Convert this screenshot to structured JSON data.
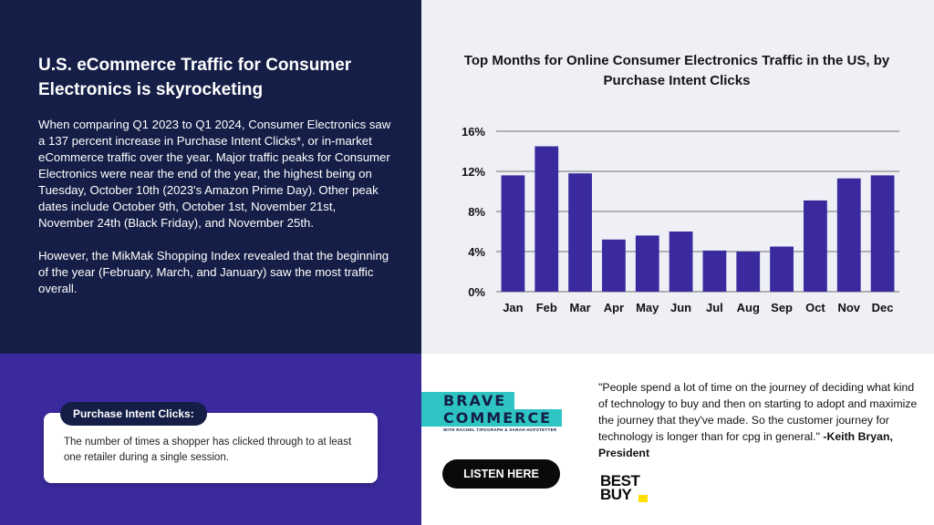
{
  "left": {
    "headline": "U.S. eCommerce Traffic for Consumer Electronics is skyrocketing",
    "paragraph1": "When comparing Q1 2023 to Q1 2024, Consumer Electronics saw a 137 percent increase in Purchase Intent Clicks*, or in-market eCommerce traffic over the year. Major traffic peaks for Consumer Electronics were near the end of the year, the highest being on Tuesday, October 10th (2023's Amazon Prime Day). Other peak dates include October 9th, October 1st, November 21st, November 24th (Black Friday), and November 25th.",
    "paragraph2": "However, the MikMak Shopping Index revealed that the beginning of the year (February, March, and January) saw the most traffic overall."
  },
  "definition": {
    "label": "Purchase Intent Clicks:",
    "text": "The number of times a shopper has clicked through to at least one retailer during a single session."
  },
  "chart_title": "Top Months for Online Consumer Electronics Traffic in the US, by Purchase Intent Clicks",
  "chart_data": {
    "type": "bar",
    "title": "Top Months for Online Consumer Electronics Traffic in the US, by Purchase Intent Clicks",
    "categories": [
      "Jan",
      "Feb",
      "Mar",
      "Apr",
      "May",
      "Jun",
      "Jul",
      "Aug",
      "Sep",
      "Oct",
      "Nov",
      "Dec"
    ],
    "values": [
      11.6,
      14.5,
      11.8,
      5.2,
      5.6,
      6.0,
      4.1,
      4.0,
      4.5,
      9.1,
      11.3,
      11.6
    ],
    "ylim": [
      0,
      16
    ],
    "yticks": [
      0,
      4,
      8,
      12,
      16
    ],
    "ytick_labels": [
      "0%",
      "4%",
      "8%",
      "12%",
      "16%"
    ],
    "xlabel": "",
    "ylabel": "",
    "grid": true,
    "bar_color": "#3a2a9e",
    "gridline_color": "#444444"
  },
  "logo": {
    "line1": "BRAVE",
    "line2": "COMMERCE",
    "subline": "WITH RACHEL TIPOGRAPH & SARAH HOFSTETTER"
  },
  "listen_button": "LISTEN HERE",
  "quote": {
    "text": "\"People spend a lot of time on the journey of deciding what kind of technology to buy and then on starting to adopt and maximize the journey that they've made. So the customer journey for technology is longer than for cpg in general.\" ",
    "author": "-Keith Bryan, President"
  },
  "brand_logo": {
    "line1": "BEST",
    "line2": "BUY"
  },
  "colors": {
    "navy": "#141e46",
    "purple": "#3a2a9e",
    "teal": "#2ec4c4",
    "light_bg": "#eef0f6",
    "yellow": "#ffe000"
  }
}
